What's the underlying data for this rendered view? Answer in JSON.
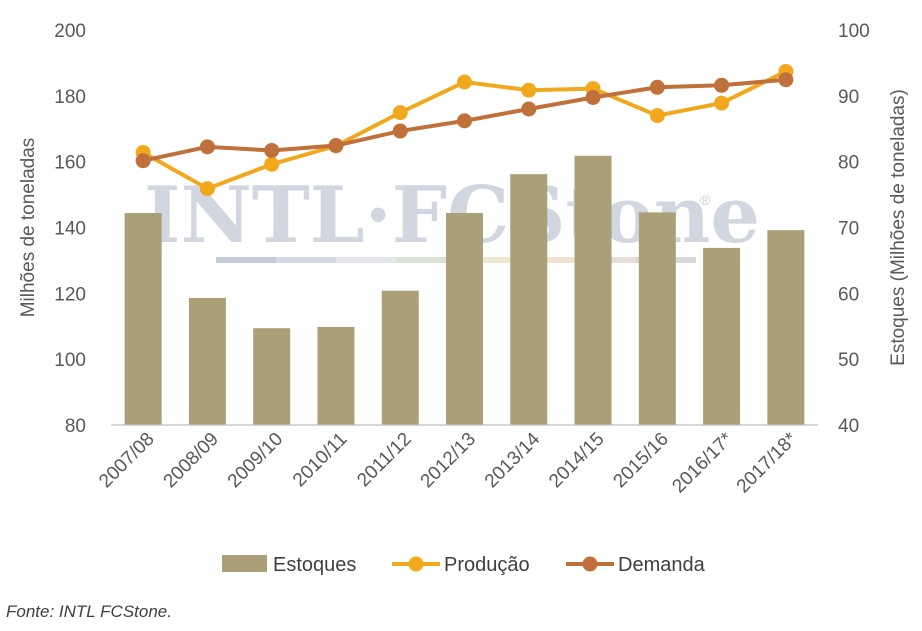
{
  "chart_data": {
    "type": "bar",
    "categories": [
      "2007/08",
      "2008/09",
      "2009/10",
      "2010/11",
      "2011/12",
      "2012/13",
      "2013/14",
      "2014/15",
      "2015/16",
      "2016/17*",
      "2017/18*"
    ],
    "xlabel": "",
    "ylabel": "Milhões de toneladas",
    "y2label": "Estoques (Milhões de toneladas)",
    "ylim": [
      80,
      200
    ],
    "y2lim": [
      40,
      100
    ],
    "yticks": [
      80,
      100,
      120,
      140,
      160,
      180,
      200
    ],
    "y2ticks": [
      40,
      50,
      60,
      70,
      80,
      90,
      100
    ],
    "grid": false,
    "legend_position": "bottom",
    "series": [
      {
        "name": "Estoques",
        "type": "bar",
        "axis": "right",
        "color": "#ab9f77",
        "values": [
          72.2,
          59.3,
          54.7,
          54.9,
          60.4,
          72.2,
          78.1,
          80.9,
          72.3,
          66.9,
          69.6
        ]
      },
      {
        "name": "Produção",
        "type": "line",
        "axis": "left",
        "color": "#f2a81d",
        "values": [
          162.8,
          151.8,
          159.2,
          164.8,
          174.9,
          184.2,
          181.7,
          182.2,
          174.0,
          177.8,
          187.4
        ]
      },
      {
        "name": "Demanda",
        "type": "line",
        "axis": "left",
        "color": "#c0703a",
        "values": [
          160.3,
          164.5,
          163.4,
          164.9,
          169.3,
          172.4,
          176.0,
          179.5,
          182.6,
          183.2,
          184.9
        ]
      }
    ]
  },
  "watermark": {
    "text": "INTL·FCStone",
    "registered": "®"
  },
  "source": "Fonte: INTL FCStone."
}
